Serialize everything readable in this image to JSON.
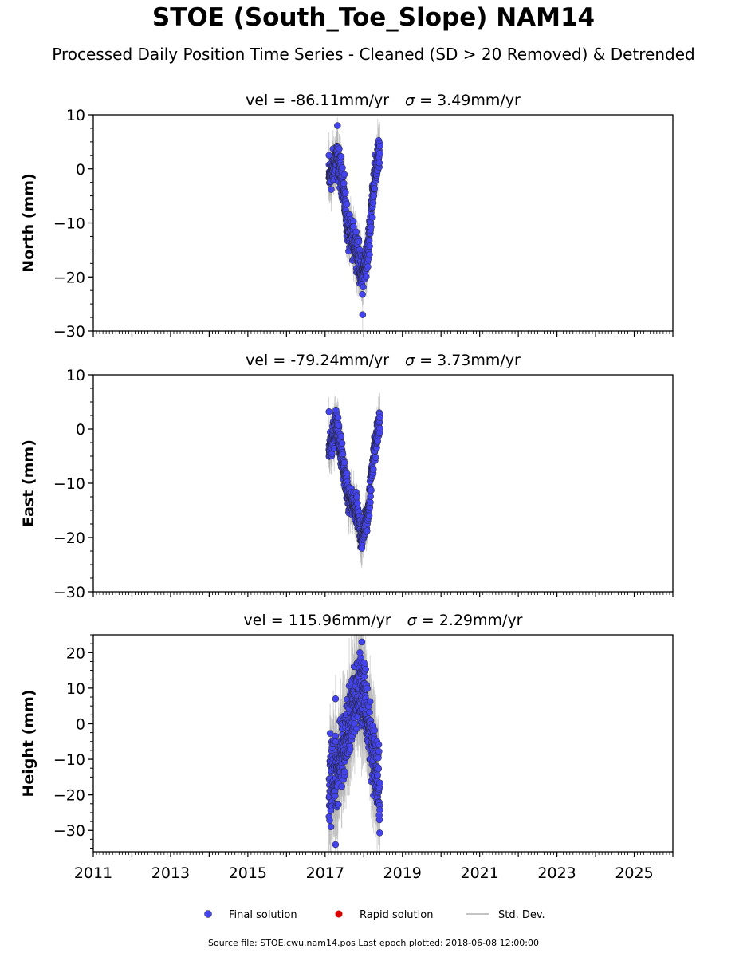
{
  "header": {
    "title": "STOE (South_Toe_Slope) NAM14",
    "subtitle": "Processed Daily Position Time Series - Cleaned (SD > 20 Removed) & Detrended"
  },
  "footer": {
    "source": "Source file: STOE.cwu.nam14.pos  Last epoch plotted: 2018-06-08 12:00:00"
  },
  "legend": {
    "final": "Final solution",
    "rapid": "Rapid solution",
    "std": "Std. Dev."
  },
  "colors": {
    "final": "#4444ee",
    "rapid": "#dd0000",
    "std": "#b0b0b0",
    "axis": "#000000"
  },
  "chart_data": [
    {
      "type": "scatter",
      "panel": "north",
      "title": "vel = -86.11mm/yr   σ = 3.49mm/yr",
      "vel_text": "vel = -86.11mm/yr",
      "sigma_symbol": "σ",
      "sigma_text": " = 3.49mm/yr",
      "ylabel": "North (mm)",
      "xlim": [
        2011,
        2026
      ],
      "ylim": [
        -30,
        10
      ],
      "yticks": [
        10,
        0,
        -10,
        -20,
        -30
      ],
      "x_tick_labels_visible": false,
      "profile": [
        [
          2017.1,
          -2
        ],
        [
          2017.3,
          2
        ],
        [
          2017.45,
          -2
        ],
        [
          2017.6,
          -12
        ],
        [
          2017.8,
          -14
        ],
        [
          2017.95,
          -20
        ],
        [
          2018.1,
          -16
        ],
        [
          2018.25,
          -3
        ],
        [
          2018.42,
          4
        ]
      ],
      "outliers": [
        [
          2017.32,
          8
        ],
        [
          2017.97,
          -27
        ],
        [
          2017.1,
          2.5
        ]
      ],
      "spread": 1.6
    },
    {
      "type": "scatter",
      "panel": "east",
      "title": "vel = -79.24mm/yr   σ = 3.73mm/yr",
      "vel_text": "vel = -79.24mm/yr",
      "sigma_symbol": "σ",
      "sigma_text": " = 3.73mm/yr",
      "ylabel": "East (mm)",
      "xlim": [
        2011,
        2026
      ],
      "ylim": [
        -30,
        10
      ],
      "yticks": [
        10,
        0,
        -10,
        -20,
        -30
      ],
      "x_tick_labels_visible": false,
      "profile": [
        [
          2017.1,
          -4
        ],
        [
          2017.3,
          1
        ],
        [
          2017.45,
          -6
        ],
        [
          2017.6,
          -13
        ],
        [
          2017.8,
          -15
        ],
        [
          2017.95,
          -20
        ],
        [
          2018.1,
          -16
        ],
        [
          2018.25,
          -5
        ],
        [
          2018.42,
          2
        ]
      ],
      "outliers": [
        [
          2017.1,
          3.2
        ],
        [
          2017.28,
          3.5
        ],
        [
          2017.95,
          -22
        ]
      ],
      "spread": 1.4
    },
    {
      "type": "scatter",
      "panel": "height",
      "title": "vel = 115.96mm/yr   σ = 2.29mm/yr",
      "vel_text": "vel = 115.96mm/yr",
      "sigma_symbol": "σ",
      "sigma_text": " = 2.29mm/yr",
      "ylabel": "Height (mm)",
      "xlim": [
        2011,
        2026
      ],
      "ylim": [
        -36,
        25
      ],
      "yticks": [
        20,
        10,
        0,
        -10,
        -20,
        -30
      ],
      "x_tick_labels_visible": true,
      "xticks": [
        2011,
        2013,
        2015,
        2017,
        2019,
        2021,
        2023,
        2025
      ],
      "profile": [
        [
          2017.1,
          -15
        ],
        [
          2017.3,
          -14
        ],
        [
          2017.5,
          -5
        ],
        [
          2017.7,
          3
        ],
        [
          2017.85,
          10
        ],
        [
          2018.0,
          8
        ],
        [
          2018.15,
          -2
        ],
        [
          2018.3,
          -12
        ],
        [
          2018.42,
          -20
        ]
      ],
      "outliers": [
        [
          2017.27,
          7
        ],
        [
          2017.27,
          -34
        ],
        [
          2017.95,
          23
        ],
        [
          2017.9,
          20
        ],
        [
          2017.15,
          -29
        ]
      ],
      "spread": 5
    }
  ]
}
